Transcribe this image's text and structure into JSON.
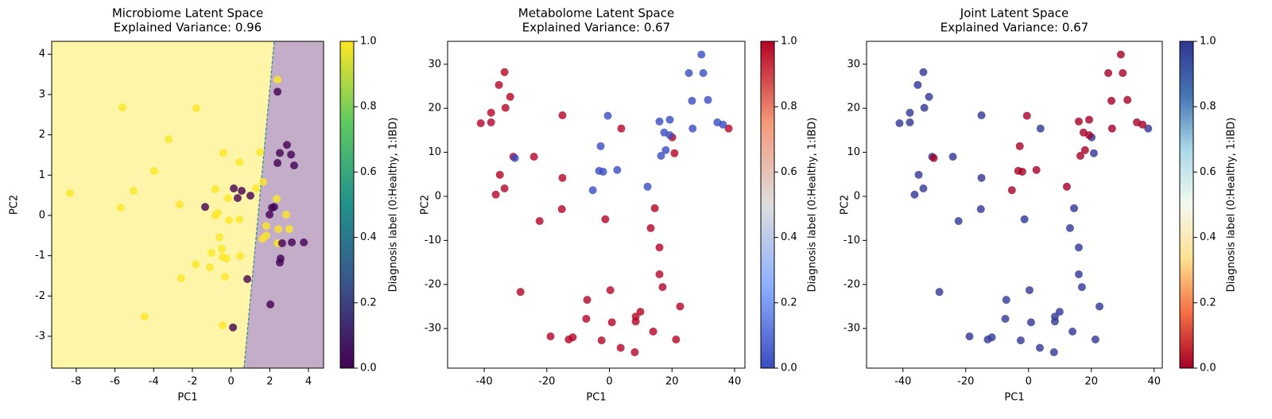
{
  "chart_data": [
    {
      "type": "scatter",
      "title": "Microbiome Latent Space",
      "subtitle": "Explained Variance: 0.96",
      "xlabel": "PC1",
      "ylabel": "PC2",
      "xlim": [
        -9.27,
        4.78
      ],
      "ylim": [
        -3.79,
        4.32
      ],
      "xticks": [
        -8,
        -6,
        -4,
        -2,
        0,
        2,
        4
      ],
      "yticks": [
        -3,
        -2,
        -1,
        0,
        1,
        2,
        3,
        4
      ],
      "decision_boundary": {
        "x": [
          0.67,
          2.23
        ],
        "colors": [
          "#fde725",
          "#440154"
        ],
        "line_color": "#3a8f8c"
      },
      "series": [
        {
          "c": 1,
          "x": [
            -8.33,
            -5.62,
            -5.7,
            -5.04,
            -4.47,
            -3.97,
            -3.23,
            -1.79,
            -2.66,
            -2.58,
            -1.83,
            -1.1,
            -1.01,
            -0.81,
            -0.81,
            -0.68,
            -0.6,
            -0.4,
            -0.48,
            -0.44,
            -0.31,
            -0.23,
            -0.44,
            -0.15,
            -0.11,
            0.43,
            0.43,
            0.47,
            1.49,
            1.29,
            1.66,
            1.62,
            1.82,
            1.82,
            2.36,
            2.4,
            2.44,
            2.4,
            3.01,
            2.85
          ],
          "y": [
            0.55,
            2.68,
            0.19,
            0.61,
            -2.51,
            1.1,
            1.89,
            2.66,
            0.27,
            -1.56,
            -1.21,
            -1.29,
            -0.93,
            0.65,
            0.0,
            0.06,
            -0.54,
            1.55,
            -0.83,
            -1.03,
            -1.52,
            -1.07,
            -2.73,
            0.43,
            -0.12,
            1.32,
            -0.1,
            -1.01,
            1.57,
            0.67,
            0.83,
            -0.58,
            -0.26,
            -0.5,
            0.41,
            3.37,
            -0.34,
            -0.69,
            -0.34,
            0.02
          ]
        },
        {
          "c": 0,
          "x": [
            -1.34,
            0.14,
            0.55,
            0.34,
            1.0,
            0.84,
            0.1,
            2.4,
            2.52,
            2.4,
            2.89,
            3.1,
            3.26,
            2.23,
            2.11,
            1.99,
            2.64,
            2.56,
            2.52,
            2.03,
            3.14,
            3.76
          ],
          "y": [
            0.21,
            0.67,
            0.61,
            0.43,
            0.49,
            -1.58,
            -2.78,
            3.07,
            1.55,
            1.3,
            1.75,
            1.51,
            1.24,
            0.21,
            0.19,
            0.02,
            -0.69,
            -1.07,
            -1.17,
            -2.21,
            -0.67,
            -0.67
          ]
        }
      ],
      "colorbar": {
        "label": "Diagnosis label (0:Healthy, 1:IBD)",
        "lim": [
          0,
          1
        ],
        "ticks": [
          {
            "value": 0,
            "label": "0.0"
          },
          {
            "value": 0.2,
            "label": "0.2"
          },
          {
            "value": 0.4,
            "label": "0.4"
          },
          {
            "value": 0.6,
            "label": "0.6"
          },
          {
            "value": 0.8,
            "label": "0.8"
          },
          {
            "value": 1,
            "label": "1.0"
          }
        ],
        "colors": [
          "#440154",
          "#3b528b",
          "#21918c",
          "#5ec962",
          "#fde725"
        ]
      }
    },
    {
      "type": "scatter",
      "title": "Metabolome Latent Space",
      "subtitle": "Explained Variance: 0.67",
      "xlabel": "PC1",
      "ylabel": "PC2",
      "xlim": [
        -51.7,
        43.3
      ],
      "ylim": [
        -39.0,
        35.2
      ],
      "xticks": [
        -40,
        -20,
        0,
        20,
        40
      ],
      "yticks": [
        -30,
        -20,
        -10,
        0,
        10,
        20,
        30
      ],
      "series": [
        {
          "c": 1,
          "x": [
            -41.1,
            -37.8,
            -37.8,
            -35.3,
            -33.5,
            -33.2,
            -31.7,
            -35.0,
            -33.5,
            -36.3,
            -30.7,
            -24.1,
            -22.3,
            -28.4,
            -15.0,
            -15.0,
            -15.2,
            -18.8,
            -13.0,
            -11.7,
            -7.1,
            -7.4,
            -2.5,
            -1.3,
            0.3,
            0.8,
            3.6,
            3.8,
            8.1,
            8.4,
            8.4,
            9.9,
            14.0,
            14.5,
            13.2,
            16.0,
            16.0,
            17.0,
            21.3,
            22.6,
            20.8,
            20.1,
            38.1
          ],
          "y": [
            16.6,
            16.8,
            19.0,
            25.3,
            28.2,
            20.1,
            22.6,
            4.9,
            1.8,
            0.4,
            9.0,
            9.0,
            -5.6,
            -21.7,
            18.4,
            4.2,
            -2.9,
            -31.8,
            -32.5,
            -32.0,
            -23.5,
            -27.8,
            -32.7,
            -5.2,
            -21.3,
            -28.6,
            -34.4,
            15.4,
            -35.4,
            -28.4,
            -27.3,
            -26.2,
            -30.7,
            -2.7,
            -7.2,
            -11.6,
            -17.7,
            -20.6,
            -32.5,
            -25.0,
            9.8,
            13.4,
            15.4
          ]
        },
        {
          "c": 0,
          "x": [
            -30.2,
            -0.5,
            -2.8,
            -3.3,
            -2.0,
            -5.3,
            2.5,
            12.2,
            16.0,
            17.5,
            18.0,
            16.5,
            19.3,
            19.3,
            25.4,
            26.4,
            26.6,
            29.4,
            30.0,
            31.5,
            34.5,
            36.3
          ],
          "y": [
            8.7,
            18.3,
            11.4,
            5.8,
            5.6,
            1.4,
            6.0,
            2.2,
            17.0,
            14.5,
            10.5,
            9.2,
            17.4,
            13.9,
            28.0,
            21.7,
            15.4,
            32.2,
            28.0,
            21.9,
            16.8,
            16.3
          ]
        }
      ],
      "colorbar": {
        "label": "Diagnosis label (0:Healthy, 1:IBD)",
        "lim": [
          0,
          1
        ],
        "ticks": [
          {
            "value": 0,
            "label": "0.0"
          },
          {
            "value": 0.2,
            "label": "0.2"
          },
          {
            "value": 0.4,
            "label": "0.4"
          },
          {
            "value": 0.6,
            "label": "0.6"
          },
          {
            "value": 0.8,
            "label": "0.8"
          },
          {
            "value": 1,
            "label": "1.0"
          }
        ],
        "colors": [
          "#3b4cc0",
          "#8db0fe",
          "#dddddd",
          "#f49a7b",
          "#b40426"
        ]
      }
    },
    {
      "type": "scatter",
      "title": "Joint Latent Space",
      "subtitle": "Explained Variance: 0.67",
      "xlabel": "PC1",
      "ylabel": "PC2",
      "xlim": [
        -51.6,
        42.6
      ],
      "ylim": [
        -39.0,
        35.2
      ],
      "xticks": [
        -40,
        -20,
        0,
        20,
        40
      ],
      "yticks": [
        -30,
        -20,
        -10,
        0,
        10,
        20,
        30
      ],
      "series": [
        {
          "c": 1,
          "x": [
            -41.1,
            -37.8,
            -37.8,
            -35.3,
            -33.5,
            -33.2,
            -31.7,
            -35.0,
            -33.5,
            -36.3,
            -30.7,
            -24.1,
            -22.3,
            -28.4,
            -15.0,
            -15.0,
            -15.2,
            -18.8,
            -13.0,
            -11.7,
            -7.1,
            -7.4,
            -2.5,
            -1.3,
            0.3,
            0.8,
            3.6,
            3.8,
            8.1,
            8.4,
            8.4,
            9.9,
            14.0,
            14.5,
            13.2,
            16.0,
            16.0,
            17.0,
            21.3,
            22.6,
            20.8,
            20.1,
            38.1
          ],
          "y": [
            16.6,
            16.8,
            19.0,
            25.3,
            28.2,
            20.1,
            22.6,
            4.9,
            1.8,
            0.4,
            9.0,
            9.0,
            -5.6,
            -21.7,
            18.4,
            4.2,
            -2.9,
            -31.8,
            -32.5,
            -32.0,
            -23.5,
            -27.8,
            -32.7,
            -5.2,
            -21.3,
            -28.6,
            -34.4,
            15.4,
            -35.4,
            -28.4,
            -27.3,
            -26.2,
            -30.7,
            -2.7,
            -7.2,
            -11.6,
            -17.7,
            -20.6,
            -32.5,
            -25.0,
            9.8,
            13.4,
            15.4
          ]
        },
        {
          "c": 0,
          "x": [
            -30.2,
            -0.5,
            -2.8,
            -3.3,
            -2.0,
            -5.3,
            2.5,
            12.2,
            16.0,
            17.5,
            18.0,
            16.5,
            19.3,
            19.3,
            25.4,
            26.4,
            26.6,
            29.4,
            30.0,
            31.5,
            34.5,
            36.3
          ],
          "y": [
            8.7,
            18.3,
            11.4,
            5.8,
            5.6,
            1.4,
            6.0,
            2.2,
            17.0,
            14.5,
            10.5,
            9.2,
            17.4,
            13.9,
            28.0,
            21.7,
            15.4,
            32.2,
            28.0,
            21.9,
            16.8,
            16.3
          ]
        }
      ],
      "colorbar": {
        "label": "Diagnosis label (0:Healthy, 1:IBD)",
        "lim": [
          0,
          1
        ],
        "ticks": [
          {
            "value": 0,
            "label": "0.0"
          },
          {
            "value": 0.2,
            "label": "0.2"
          },
          {
            "value": 0.4,
            "label": "0.4"
          },
          {
            "value": 0.6,
            "label": "0.6"
          },
          {
            "value": 0.8,
            "label": "0.8"
          },
          {
            "value": 1,
            "label": "1.0"
          }
        ],
        "colors": [
          "#a50026",
          "#f46d43",
          "#fee090",
          "#f4f9f0",
          "#abd9e9",
          "#4575b4",
          "#313695"
        ]
      }
    }
  ]
}
